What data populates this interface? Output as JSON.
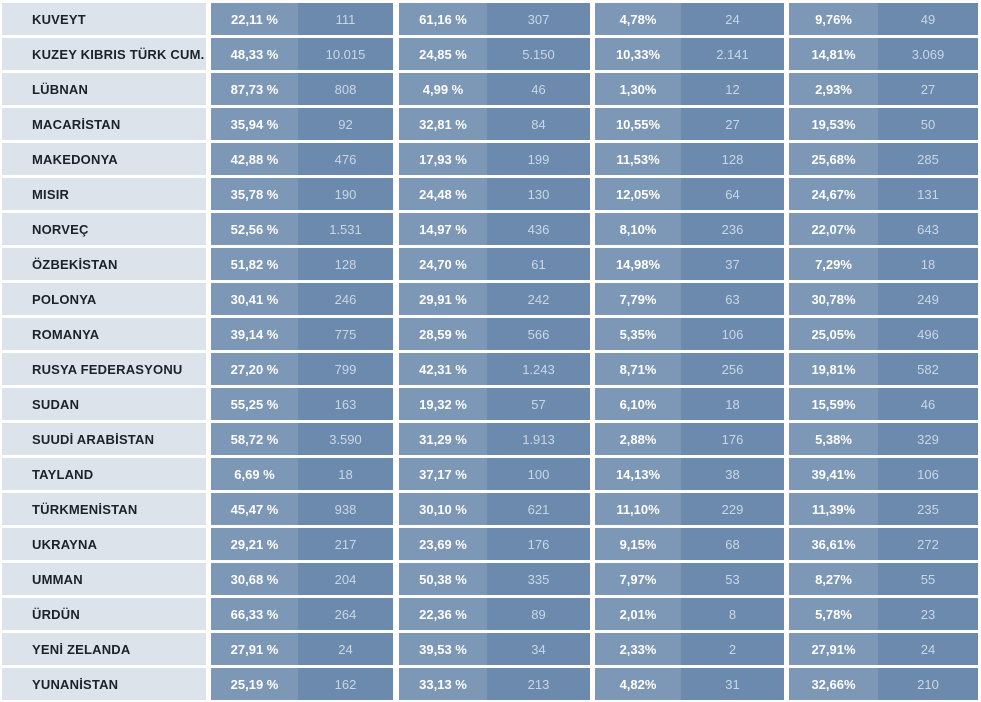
{
  "colors": {
    "country_bg": "#dce3eb",
    "country_text": "#1a222c",
    "pct_bg": "#7d97b6",
    "pct_text": "#ffffff",
    "num_bg": "#6c8aad",
    "num_text": "#c9d7e5",
    "gap_color": "#ffffff"
  },
  "table": {
    "rows": [
      {
        "country": "KUVEYT",
        "p1": "22,11 %",
        "n1": "111",
        "p2": "61,16 %",
        "n2": "307",
        "p3": "4,78%",
        "n3": "24",
        "p4": "9,76%",
        "n4": "49"
      },
      {
        "country": "KUZEY KIBRIS TÜRK CUM.",
        "p1": "48,33 %",
        "n1": "10.015",
        "p2": "24,85 %",
        "n2": "5.150",
        "p3": "10,33%",
        "n3": "2.141",
        "p4": "14,81%",
        "n4": "3.069"
      },
      {
        "country": "LÜBNAN",
        "p1": "87,73 %",
        "n1": "808",
        "p2": "4,99 %",
        "n2": "46",
        "p3": "1,30%",
        "n3": "12",
        "p4": "2,93%",
        "n4": "27"
      },
      {
        "country": "MACARİSTAN",
        "p1": "35,94 %",
        "n1": "92",
        "p2": "32,81 %",
        "n2": "84",
        "p3": "10,55%",
        "n3": "27",
        "p4": "19,53%",
        "n4": "50"
      },
      {
        "country": "MAKEDONYA",
        "p1": "42,88 %",
        "n1": "476",
        "p2": "17,93 %",
        "n2": "199",
        "p3": "11,53%",
        "n3": "128",
        "p4": "25,68%",
        "n4": "285"
      },
      {
        "country": "MISIR",
        "p1": "35,78 %",
        "n1": "190",
        "p2": "24,48 %",
        "n2": "130",
        "p3": "12,05%",
        "n3": "64",
        "p4": "24,67%",
        "n4": "131"
      },
      {
        "country": "NORVEÇ",
        "p1": "52,56 %",
        "n1": "1.531",
        "p2": "14,97 %",
        "n2": "436",
        "p3": "8,10%",
        "n3": "236",
        "p4": "22,07%",
        "n4": "643"
      },
      {
        "country": "ÖZBEKİSTAN",
        "p1": "51,82 %",
        "n1": "128",
        "p2": "24,70 %",
        "n2": "61",
        "p3": "14,98%",
        "n3": "37",
        "p4": "7,29%",
        "n4": "18"
      },
      {
        "country": "POLONYA",
        "p1": "30,41 %",
        "n1": "246",
        "p2": "29,91 %",
        "n2": "242",
        "p3": "7,79%",
        "n3": "63",
        "p4": "30,78%",
        "n4": "249"
      },
      {
        "country": "ROMANYA",
        "p1": "39,14 %",
        "n1": "775",
        "p2": "28,59 %",
        "n2": "566",
        "p3": "5,35%",
        "n3": "106",
        "p4": "25,05%",
        "n4": "496"
      },
      {
        "country": "RUSYA FEDERASYONU",
        "p1": "27,20 %",
        "n1": "799",
        "p2": "42,31 %",
        "n2": "1.243",
        "p3": "8,71%",
        "n3": "256",
        "p4": "19,81%",
        "n4": "582"
      },
      {
        "country": "SUDAN",
        "p1": "55,25 %",
        "n1": "163",
        "p2": "19,32 %",
        "n2": "57",
        "p3": "6,10%",
        "n3": "18",
        "p4": "15,59%",
        "n4": "46"
      },
      {
        "country": "SUUDİ ARABİSTAN",
        "p1": "58,72 %",
        "n1": "3.590",
        "p2": "31,29 %",
        "n2": "1.913",
        "p3": "2,88%",
        "n3": "176",
        "p4": "5,38%",
        "n4": "329"
      },
      {
        "country": "TAYLAND",
        "p1": "6,69 %",
        "n1": "18",
        "p2": "37,17 %",
        "n2": "100",
        "p3": "14,13%",
        "n3": "38",
        "p4": "39,41%",
        "n4": "106"
      },
      {
        "country": "TÜRKMENİSTAN",
        "p1": "45,47 %",
        "n1": "938",
        "p2": "30,10 %",
        "n2": "621",
        "p3": "11,10%",
        "n3": "229",
        "p4": "11,39%",
        "n4": "235"
      },
      {
        "country": "UKRAYNA",
        "p1": "29,21 %",
        "n1": "217",
        "p2": "23,69 %",
        "n2": "176",
        "p3": "9,15%",
        "n3": "68",
        "p4": "36,61%",
        "n4": "272"
      },
      {
        "country": "UMMAN",
        "p1": "30,68 %",
        "n1": "204",
        "p2": "50,38 %",
        "n2": "335",
        "p3": "7,97%",
        "n3": "53",
        "p4": "8,27%",
        "n4": "55"
      },
      {
        "country": "ÜRDÜN",
        "p1": "66,33 %",
        "n1": "264",
        "p2": "22,36 %",
        "n2": "89",
        "p3": "2,01%",
        "n3": "8",
        "p4": "5,78%",
        "n4": "23"
      },
      {
        "country": "YENİ ZELANDA",
        "p1": "27,91 %",
        "n1": "24",
        "p2": "39,53 %",
        "n2": "34",
        "p3": "2,33%",
        "n3": "2",
        "p4": "27,91%",
        "n4": "24"
      },
      {
        "country": "YUNANİSTAN",
        "p1": "25,19 %",
        "n1": "162",
        "p2": "33,13 %",
        "n2": "213",
        "p3": "4,82%",
        "n3": "31",
        "p4": "32,66%",
        "n4": "210"
      }
    ]
  }
}
